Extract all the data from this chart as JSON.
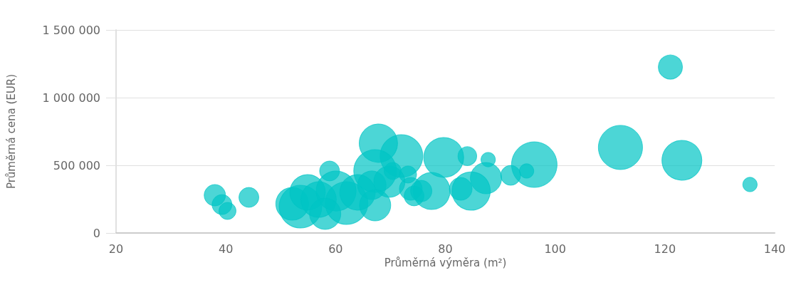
{
  "chart_data": {
    "type": "bubble",
    "xlabel": "Průměrná výměra (m²)",
    "ylabel": "Průměrná cena (EUR)",
    "xlim": [
      20,
      140
    ],
    "xticks": [
      20,
      40,
      60,
      80,
      100,
      120,
      140
    ],
    "ylim": [
      0,
      1500000
    ],
    "yticks": [
      0,
      {
        "value": 500000,
        "label": "500 000"
      },
      {
        "value": 1000000,
        "label": "1 000 000"
      },
      {
        "value": 1500000,
        "label": "1 500 000"
      }
    ],
    "grid": "y",
    "color": "#00c4c4",
    "x": [
      38.0,
      39.3,
      40.3,
      44.2,
      121.0,
      111.9,
      123.1,
      135.5,
      96.2,
      94.8,
      91.9,
      87.8,
      84.0,
      79.7,
      72.0,
      67.8,
      58.9,
      67.2,
      77.5,
      87.4,
      84.7,
      82.8,
      52.1,
      53.6,
      54.9,
      56.9,
      60.1,
      62.0,
      64.0,
      66.6,
      69.8,
      73.7,
      74.3,
      70.4,
      73.2,
      75.6,
      58.1,
      67.2
    ],
    "values": [
      279000,
      210000,
      163000,
      263000,
      1226000,
      632000,
      537000,
      358000,
      505000,
      458000,
      426000,
      542000,
      568000,
      558000,
      568000,
      663000,
      458000,
      458000,
      310000,
      405000,
      310000,
      326000,
      216000,
      195000,
      300000,
      247000,
      310000,
      221000,
      300000,
      353000,
      379000,
      326000,
      274000,
      458000,
      432000,
      310000,
      142000,
      205000
    ],
    "sizes": [
      0.22,
      0.19,
      0.14,
      0.19,
      0.28,
      0.94,
      0.77,
      0.1,
      1,
      0.1,
      0.19,
      0.1,
      0.17,
      0.77,
      0.88,
      0.71,
      0.19,
      0.88,
      0.66,
      0.47,
      0.71,
      0.25,
      0.52,
      0.88,
      0.61,
      0.61,
      0.77,
      0.88,
      0.61,
      0.39,
      0.47,
      0.25,
      0.19,
      0.14,
      0.14,
      0.22,
      0.47,
      0.47
    ]
  }
}
